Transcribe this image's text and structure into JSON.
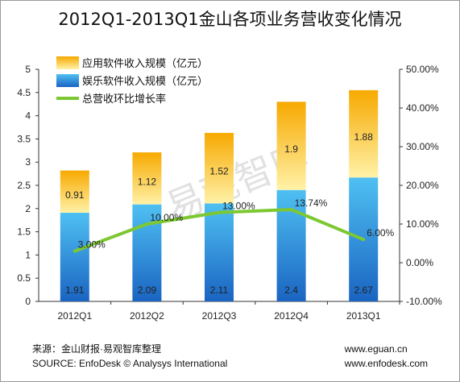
{
  "chart_data": {
    "type": "bar",
    "title": "2012Q1-2013Q1金山各项业务营收变化情况",
    "categories": [
      "2012Q1",
      "2012Q2",
      "2012Q3",
      "2012Q4",
      "2013Q1"
    ],
    "series": [
      {
        "name": "娱乐软件收入规模（亿元）",
        "kind": "stacked-bar",
        "values": [
          1.91,
          2.09,
          2.11,
          2.4,
          2.67
        ],
        "color": "#2e86d4"
      },
      {
        "name": "应用软件收入规模（亿元）",
        "kind": "stacked-bar",
        "values": [
          0.91,
          1.12,
          1.52,
          1.9,
          1.88
        ],
        "color": "#f5b800"
      },
      {
        "name": "总营收环比增长率",
        "kind": "line",
        "axis": "right",
        "values": [
          3.0,
          10.0,
          13.0,
          13.74,
          6.0
        ],
        "labels": [
          "3.00%",
          "10.00%",
          "13.00%",
          "13.74%",
          "6.00%"
        ],
        "color": "#7dc832"
      }
    ],
    "legend_order": [
      "应用软件收入规模（亿元）",
      "娱乐软件收入规模（亿元）",
      "总营收环比增长率"
    ],
    "y_left": {
      "min": 0,
      "max": 5,
      "ticks": [
        "0",
        "0.5",
        "1",
        "1.5",
        "2",
        "2.5",
        "3",
        "3.5",
        "4",
        "4.5",
        "5"
      ]
    },
    "y_right": {
      "min": -10,
      "max": 50,
      "ticks": [
        "-10.00%",
        "0.00%",
        "10.00%",
        "20.00%",
        "30.00%",
        "40.00%",
        "50.00%"
      ]
    },
    "legend_position": "top-left",
    "grid": false
  },
  "watermark": "易观智库",
  "footer": {
    "source_cn": "来源：金山财报·易观智库整理",
    "source_en": "SOURCE: EnfoDesk © Analysys International",
    "url1": "www.eguan.cn",
    "url2": "www.enfodesk.com"
  }
}
